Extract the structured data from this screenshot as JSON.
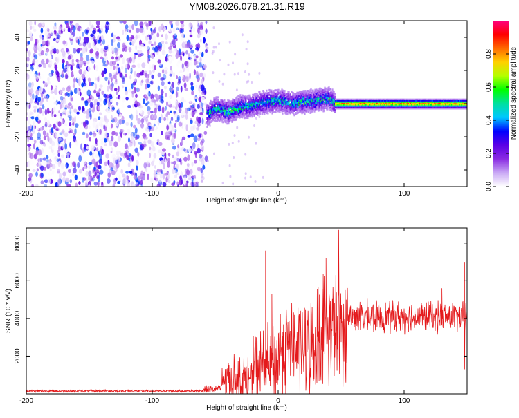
{
  "figure": {
    "title": "YM08.2026.078.21.31.R19"
  },
  "chart_data": [
    {
      "type": "heatmap",
      "title": "YM08.2026.078.21.31.R19",
      "xlabel": "Height of straight line (km)",
      "ylabel": "Frequency (Hz)",
      "xlim": [
        -200,
        150
      ],
      "ylim": [
        -50,
        50
      ],
      "x_ticks": [
        -200,
        -100,
        0,
        100
      ],
      "y_ticks": [
        -40,
        -20,
        0,
        20,
        40
      ],
      "colorbar": {
        "label": "Normalized spectral amplitude",
        "range": [
          0,
          1
        ],
        "ticks": [
          0,
          0.2,
          0.4,
          0.6,
          0.8
        ],
        "tick_labels": [
          "0.0",
          "0.2",
          "0.4",
          "0.6",
          "0.8"
        ],
        "colormap": [
          "#ffffff",
          "#c9a8f5",
          "#8a2be2",
          "#5a00e6",
          "#0000ff",
          "#00c8ff",
          "#00e0a0",
          "#00ff00",
          "#b4ff00",
          "#ffd000",
          "#ff6a00",
          "#ff0000",
          "#ff0080"
        ]
      },
      "regions": [
        {
          "x_range": [
            -200,
            -57
          ],
          "y_range": [
            -50,
            50
          ],
          "amplitude_range": [
            0.0,
            0.12
          ],
          "description_level": "broadband noise"
        },
        {
          "x_range": [
            -57,
            45
          ],
          "center_track": [
            [
              -57,
              -7
            ],
            [
              -50,
              -3
            ],
            [
              -40,
              -5
            ],
            [
              -30,
              -2
            ],
            [
              -20,
              -1
            ],
            [
              -10,
              1
            ],
            [
              0,
              2
            ],
            [
              10,
              0
            ],
            [
              20,
              1
            ],
            [
              30,
              2
            ],
            [
              40,
              3
            ],
            [
              45,
              0
            ]
          ],
          "half_width": [
            6,
            3
          ],
          "amplitude_range": [
            0.1,
            0.6
          ]
        },
        {
          "x_range": [
            45,
            150
          ],
          "center_track": [
            [
              45,
              0
            ],
            [
              150,
              0
            ]
          ],
          "half_width": 3,
          "core_amplitude": 0.95,
          "amplitude_range": [
            0.1,
            0.95
          ]
        }
      ],
      "grid": false
    },
    {
      "type": "line",
      "xlabel": "Height of straight line (km)",
      "ylabel": "SNR (10 * v/v)",
      "xlim": [
        -200,
        150
      ],
      "ylim": [
        0,
        8800
      ],
      "x_ticks": [
        -200,
        -100,
        0,
        100
      ],
      "y_ticks": [
        2000,
        4000,
        6000,
        8000
      ],
      "series": [
        {
          "color": "#e41a1c",
          "segments": [
            {
              "x_range": [
                -200,
                -60
              ],
              "mean": 150,
              "spread": 120
            },
            {
              "x_range": [
                -60,
                -45
              ],
              "mean": 250,
              "spread": 400
            },
            {
              "x_range": [
                -45,
                -20
              ],
              "mean": 800,
              "spread": 1500
            },
            {
              "x_range": [
                -20,
                0
              ],
              "mean": 1500,
              "spread": 2500
            },
            {
              "x_range": [
                0,
                30
              ],
              "mean": 2500,
              "spread": 3000
            },
            {
              "x_range": [
                30,
                55
              ],
              "mean": 3500,
              "spread": 3500
            },
            {
              "x_range": [
                55,
                150
              ],
              "mean": 4100,
              "spread": 1000
            }
          ],
          "peaks": [
            [
              -10,
              7600
            ],
            [
              -5,
              5300
            ],
            [
              38,
              7200
            ],
            [
              48,
              8700
            ],
            [
              130,
              5600
            ],
            [
              148,
              7000
            ]
          ],
          "end_dip": [
            148,
            1300
          ]
        }
      ],
      "grid": false
    }
  ]
}
